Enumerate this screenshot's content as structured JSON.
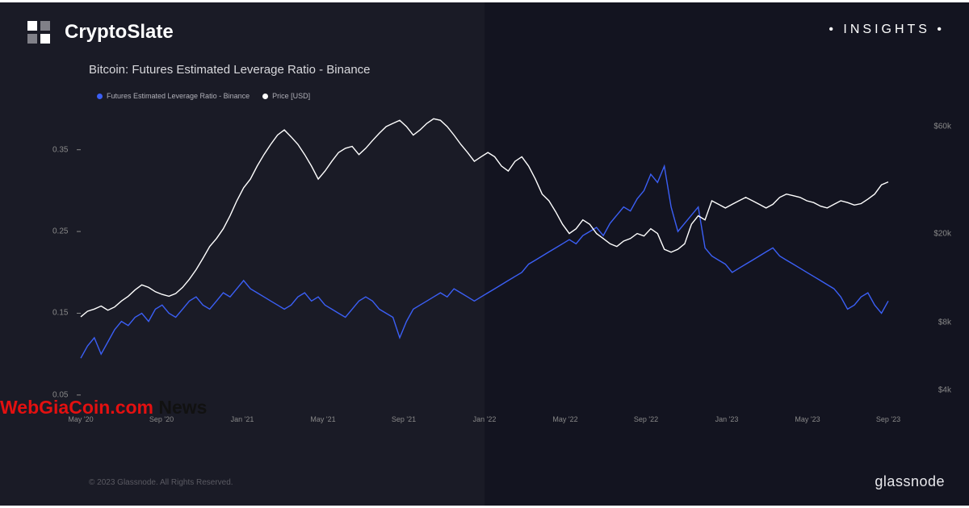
{
  "brand": "CryptoSlate",
  "insights_label": "• INSIGHTS •",
  "chart": {
    "title": "Bitcoin: Futures Estimated Leverage Ratio - Binance",
    "type": "line",
    "background_left": "#1a1b26",
    "background_right": "#131420",
    "series": [
      {
        "name": "Futures Estimated Leverage Ratio - Binance",
        "color": "#3b5ff5",
        "axis": "left",
        "legend_label": "Futures Estimated Leverage Ratio - Binance"
      },
      {
        "name": "Price [USD]",
        "color": "#ffffff",
        "axis": "right",
        "legend_label": "Price [USD]"
      }
    ],
    "y_left": {
      "ticks": [
        {
          "v": 0.05,
          "label": "0.05"
        },
        {
          "v": 0.15,
          "label": "0.15"
        },
        {
          "v": 0.25,
          "label": "0.25"
        },
        {
          "v": 0.35,
          "label": "0.35"
        }
      ],
      "min": 0.04,
      "max": 0.4
    },
    "y_right": {
      "ticks": [
        {
          "v": 4000,
          "label": "$4k"
        },
        {
          "v": 8000,
          "label": "$8k"
        },
        {
          "v": 20000,
          "label": "$20k"
        },
        {
          "v": 60000,
          "label": "$60k"
        }
      ],
      "scale": "log",
      "min": 3500,
      "max": 72000
    },
    "x_axis": {
      "labels": [
        "May '20",
        "Sep '20",
        "Jan '21",
        "May '21",
        "Sep '21",
        "Jan '22",
        "May '22",
        "Sep '22",
        "Jan '23",
        "May '23",
        "Sep '23"
      ]
    },
    "leverage_data": [
      0.095,
      0.11,
      0.12,
      0.1,
      0.115,
      0.13,
      0.14,
      0.135,
      0.145,
      0.15,
      0.14,
      0.155,
      0.16,
      0.15,
      0.145,
      0.155,
      0.165,
      0.17,
      0.16,
      0.155,
      0.165,
      0.175,
      0.17,
      0.18,
      0.19,
      0.18,
      0.175,
      0.17,
      0.165,
      0.16,
      0.155,
      0.16,
      0.17,
      0.175,
      0.165,
      0.17,
      0.16,
      0.155,
      0.15,
      0.145,
      0.155,
      0.165,
      0.17,
      0.165,
      0.155,
      0.15,
      0.145,
      0.12,
      0.14,
      0.155,
      0.16,
      0.165,
      0.17,
      0.175,
      0.17,
      0.18,
      0.175,
      0.17,
      0.165,
      0.17,
      0.175,
      0.18,
      0.185,
      0.19,
      0.195,
      0.2,
      0.21,
      0.215,
      0.22,
      0.225,
      0.23,
      0.235,
      0.24,
      0.235,
      0.245,
      0.25,
      0.255,
      0.245,
      0.26,
      0.27,
      0.28,
      0.275,
      0.29,
      0.3,
      0.32,
      0.31,
      0.33,
      0.28,
      0.25,
      0.26,
      0.27,
      0.28,
      0.23,
      0.22,
      0.215,
      0.21,
      0.2,
      0.205,
      0.21,
      0.215,
      0.22,
      0.225,
      0.23,
      0.22,
      0.215,
      0.21,
      0.205,
      0.2,
      0.195,
      0.19,
      0.185,
      0.18,
      0.17,
      0.155,
      0.16,
      0.17,
      0.175,
      0.16,
      0.15,
      0.165
    ],
    "price_data": [
      8500,
      9000,
      9200,
      9500,
      9100,
      9400,
      10000,
      10500,
      11200,
      11800,
      11500,
      11000,
      10700,
      10500,
      10800,
      11500,
      12500,
      13800,
      15500,
      17500,
      19000,
      21000,
      24000,
      28000,
      32000,
      35000,
      40000,
      45000,
      50000,
      55000,
      58000,
      54000,
      50000,
      45000,
      40000,
      35000,
      38000,
      42000,
      46000,
      48000,
      49000,
      45000,
      48000,
      52000,
      56000,
      60000,
      62000,
      64000,
      60000,
      55000,
      58000,
      62000,
      65000,
      64000,
      60000,
      55000,
      50000,
      46000,
      42000,
      44000,
      46000,
      44000,
      40000,
      38000,
      42000,
      44000,
      40000,
      35000,
      30000,
      28000,
      25000,
      22000,
      20000,
      21000,
      23000,
      22000,
      20000,
      19000,
      18000,
      17500,
      18500,
      19000,
      20000,
      19500,
      21000,
      20000,
      17000,
      16500,
      17000,
      18000,
      22000,
      24000,
      23000,
      28000,
      27000,
      26000,
      27000,
      28000,
      29000,
      28000,
      27000,
      26000,
      27000,
      29000,
      30000,
      29500,
      29000,
      28000,
      27500,
      26500,
      26000,
      27000,
      28000,
      27500,
      26800,
      27200,
      28500,
      30000,
      33000,
      34000
    ],
    "line_width": 1.4,
    "tick_color": "#888888",
    "tick_fontsize": 10
  },
  "watermark": {
    "part1": "WebGiaCoin.com",
    "part2": " News"
  },
  "copyright": "© 2023 Glassnode. All Rights Reserved.",
  "footer_brand": "glassnode"
}
